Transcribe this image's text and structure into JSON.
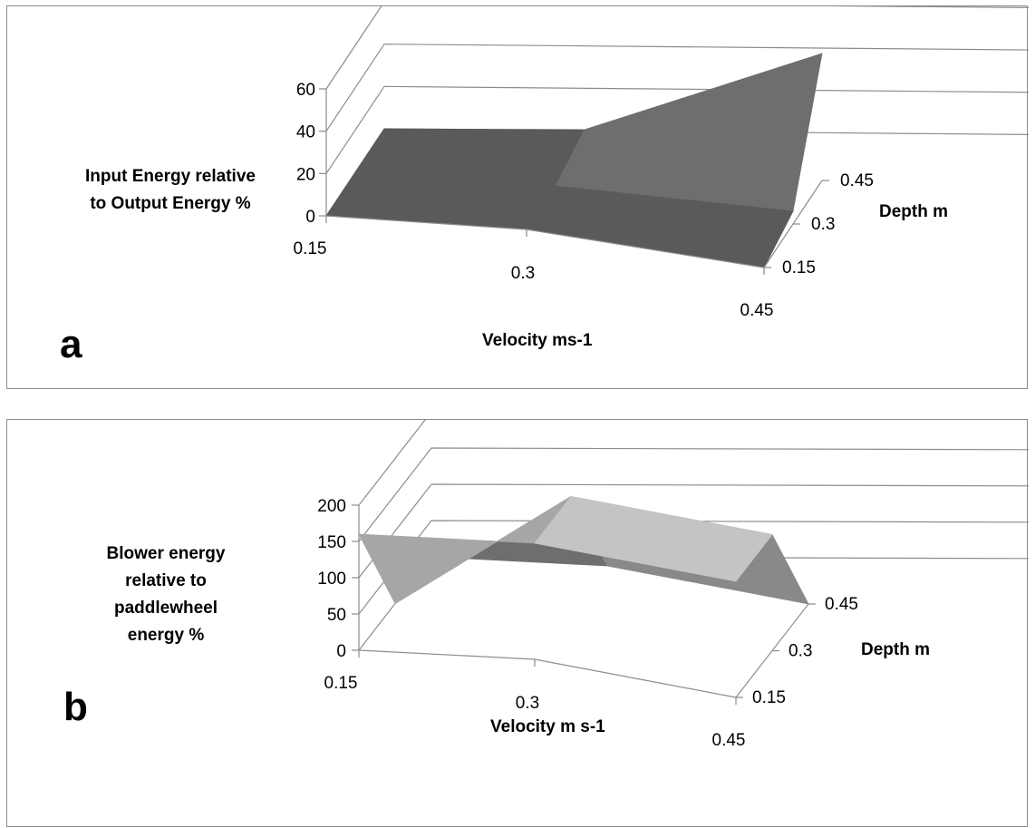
{
  "chart_data": [
    {
      "type": "surface",
      "panel_letter": "a",
      "xlabel": "Velocity ms-1",
      "ylabel": "Input Energy relative to Output Energy %",
      "zlabel": "Depth m",
      "x": [
        "0.15",
        "0.3",
        "0.45"
      ],
      "depth": [
        "0.15",
        "0.3",
        "0.45"
      ],
      "y_ticks": [
        "0",
        "20",
        "40",
        "60"
      ],
      "ylim": [
        0,
        60
      ],
      "values": [
        [
          0,
          0,
          0
        ],
        [
          0,
          0,
          6
        ],
        [
          0,
          6,
          60
        ]
      ],
      "legend": "none",
      "grid": true
    },
    {
      "type": "surface",
      "panel_letter": "b",
      "xlabel": "Velocity m s-1",
      "ylabel": "Blower energy relative to paddlewheel energy %",
      "zlabel": "Depth m",
      "x": [
        "0.15",
        "0.3",
        "0.45"
      ],
      "depth": [
        "0.15",
        "0.3",
        "0.45"
      ],
      "y_ticks": [
        "0",
        "50",
        "100",
        "150",
        "200"
      ],
      "ylim": [
        0,
        200
      ],
      "values": [
        [
          160,
          0,
          0
        ],
        [
          160,
          160,
          0
        ],
        [
          160,
          160,
          0
        ]
      ],
      "legend": "none",
      "grid": true
    }
  ]
}
